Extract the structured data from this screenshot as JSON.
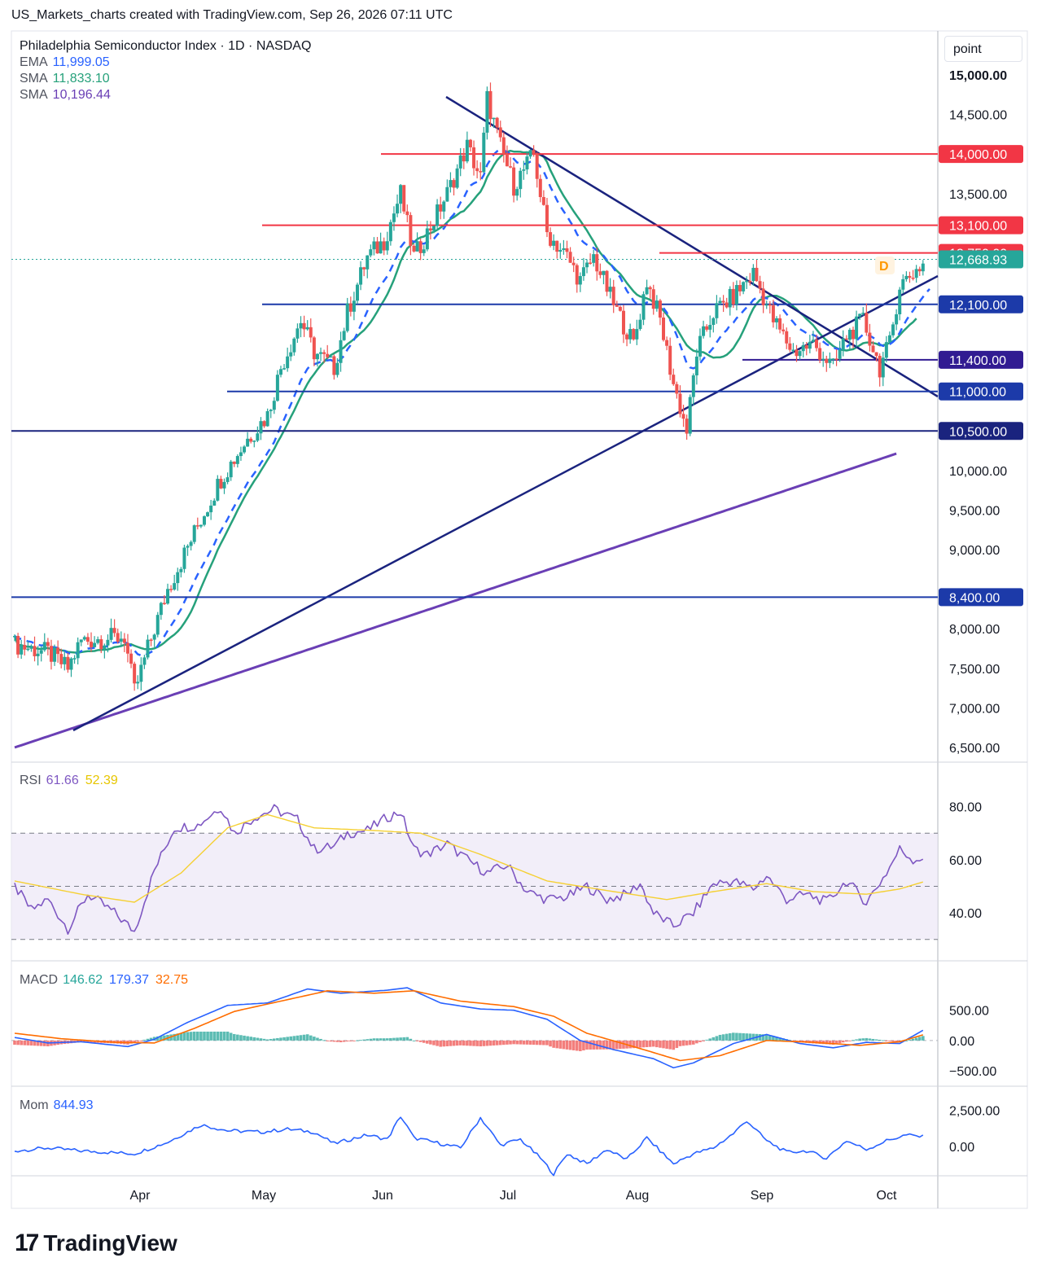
{
  "header": "US_Markets_charts created with TradingView.com, Sep 26, 2026 07:11 UTC",
  "unit_label": "point",
  "brand": "TradingView",
  "legend": {
    "title": "Philadelphia Semiconductor Index · 1D · NASDAQ",
    "ema_label": "EMA",
    "ema_value": "11,999.05",
    "sma1_label": "SMA",
    "sma1_value": "11,833.10",
    "sma2_label": "SMA",
    "sma2_value": "10,196.44"
  },
  "rsi_legend": {
    "label": "RSI",
    "v1": "61.66",
    "v2": "52.39"
  },
  "macd_legend": {
    "label": "MACD",
    "v1": "146.62",
    "v2": "179.37",
    "v3": "32.75"
  },
  "mom_legend": {
    "label": "Mom",
    "v1": "844.93"
  },
  "colors": {
    "up": "#26a69a",
    "down": "#ef5350",
    "ema": "#2962ff",
    "sma50": "#26a17b",
    "sma200": "#6a3fb5",
    "trend": "#1a237e",
    "rsi": "#7e57c2",
    "rsi_signal": "#f5d033",
    "macd": "#2962ff",
    "signal": "#ff6d00",
    "mom": "#2962ff"
  },
  "chart_data": {
    "type": "candlestick",
    "ylim": [
      6500,
      15000
    ],
    "price_ticks": [
      "15,000.00",
      "14,500.00",
      "13,500.00",
      "10,000.00",
      "9,500.00",
      "9,000.00",
      "8,000.00",
      "7,500.00",
      "7,000.00",
      "6,500.00"
    ],
    "x_labels": [
      "Apr",
      "May",
      "Jun",
      "Jul",
      "Aug",
      "Sep",
      "Oct"
    ],
    "last_price": "12,668.93",
    "marker": "D",
    "levels": [
      {
        "label": "14,000.00",
        "value": 14000,
        "color": "#f23645"
      },
      {
        "label": "13,100.00",
        "value": 13100,
        "color": "#f23645"
      },
      {
        "label": "12,750.00",
        "value": 12750,
        "color": "#f23645"
      },
      {
        "label": "12,100.00",
        "value": 12100,
        "color": "#1c3aa9"
      },
      {
        "label": "11,400.00",
        "value": 11400,
        "color": "#311b92"
      },
      {
        "label": "11,000.00",
        "value": 11000,
        "color": "#1c3aa9"
      },
      {
        "label": "10,500.00",
        "value": 10500,
        "color": "#1a237e"
      },
      {
        "label": "8,400.00",
        "value": 8400,
        "color": "#1c3aa9"
      }
    ],
    "close_keypoints": [
      [
        0,
        7800
      ],
      [
        10,
        7700
      ],
      [
        16,
        7500
      ],
      [
        20,
        7850
      ],
      [
        33,
        7900
      ],
      [
        36,
        7200
      ],
      [
        40,
        7750
      ],
      [
        46,
        8500
      ],
      [
        55,
        9300
      ],
      [
        62,
        9900
      ],
      [
        70,
        10400
      ],
      [
        76,
        10700
      ],
      [
        80,
        11300
      ],
      [
        86,
        11900
      ],
      [
        90,
        11500
      ],
      [
        96,
        11300
      ],
      [
        100,
        12000
      ],
      [
        106,
        12700
      ],
      [
        111,
        12900
      ],
      [
        116,
        13500
      ],
      [
        120,
        12700
      ],
      [
        124,
        13000
      ],
      [
        130,
        13500
      ],
      [
        136,
        14100
      ],
      [
        140,
        13700
      ],
      [
        142,
        14700
      ],
      [
        146,
        14100
      ],
      [
        150,
        13600
      ],
      [
        156,
        14000
      ],
      [
        160,
        13000
      ],
      [
        166,
        12700
      ],
      [
        170,
        12400
      ],
      [
        174,
        12700
      ],
      [
        180,
        12100
      ],
      [
        186,
        11600
      ],
      [
        190,
        12400
      ],
      [
        194,
        11900
      ],
      [
        198,
        11100
      ],
      [
        202,
        10500
      ],
      [
        205,
        11500
      ],
      [
        210,
        12000
      ],
      [
        216,
        12200
      ],
      [
        222,
        12500
      ],
      [
        228,
        11900
      ],
      [
        234,
        11500
      ],
      [
        240,
        11600
      ],
      [
        246,
        11300
      ],
      [
        250,
        11700
      ],
      [
        255,
        11900
      ],
      [
        260,
        11300
      ],
      [
        263,
        11600
      ],
      [
        266,
        12350
      ],
      [
        270,
        12500
      ],
      [
        274,
        12650
      ]
    ],
    "rsi": {
      "ylim": [
        25,
        90
      ],
      "ticks": [
        "80.00",
        "60.00",
        "40.00"
      ],
      "upper": 70,
      "mid": 50,
      "lower": 30,
      "keypoints": [
        [
          0,
          50
        ],
        [
          5,
          41
        ],
        [
          10,
          45
        ],
        [
          16,
          34
        ],
        [
          22,
          47
        ],
        [
          30,
          40
        ],
        [
          36,
          33
        ],
        [
          42,
          56
        ],
        [
          48,
          72
        ],
        [
          55,
          73
        ],
        [
          62,
          80
        ],
        [
          66,
          70
        ],
        [
          72,
          76
        ],
        [
          78,
          79
        ],
        [
          85,
          75
        ],
        [
          90,
          64
        ],
        [
          96,
          65
        ],
        [
          100,
          70
        ],
        [
          106,
          71
        ],
        [
          112,
          76
        ],
        [
          116,
          78
        ],
        [
          120,
          64
        ],
        [
          124,
          62
        ],
        [
          130,
          66
        ],
        [
          136,
          60
        ],
        [
          142,
          55
        ],
        [
          148,
          58
        ],
        [
          154,
          48
        ],
        [
          160,
          45
        ],
        [
          166,
          46
        ],
        [
          172,
          50
        ],
        [
          178,
          45
        ],
        [
          184,
          47
        ],
        [
          188,
          51
        ],
        [
          192,
          40
        ],
        [
          198,
          35
        ],
        [
          204,
          40
        ],
        [
          210,
          51
        ],
        [
          216,
          52
        ],
        [
          222,
          49
        ],
        [
          226,
          54
        ],
        [
          232,
          45
        ],
        [
          238,
          47
        ],
        [
          244,
          44
        ],
        [
          250,
          52
        ],
        [
          256,
          44
        ],
        [
          262,
          55
        ],
        [
          266,
          64
        ],
        [
          270,
          60
        ],
        [
          274,
          61
        ]
      ],
      "signal_keypoints": [
        [
          0,
          52
        ],
        [
          20,
          47
        ],
        [
          36,
          44
        ],
        [
          50,
          55
        ],
        [
          64,
          72
        ],
        [
          76,
          77
        ],
        [
          90,
          72
        ],
        [
          108,
          71
        ],
        [
          122,
          70
        ],
        [
          140,
          62
        ],
        [
          160,
          52
        ],
        [
          180,
          48
        ],
        [
          196,
          45
        ],
        [
          210,
          48
        ],
        [
          226,
          51
        ],
        [
          240,
          48
        ],
        [
          256,
          47
        ],
        [
          266,
          49
        ],
        [
          274,
          52
        ]
      ]
    },
    "macd": {
      "ylim": [
        -700,
        1100
      ],
      "ticks": [
        "500.00",
        "0.00",
        "−500.00"
      ],
      "macd_keypoints": [
        [
          0,
          50
        ],
        [
          10,
          -40
        ],
        [
          20,
          -20
        ],
        [
          34,
          -100
        ],
        [
          42,
          20
        ],
        [
          52,
          300
        ],
        [
          64,
          580
        ],
        [
          76,
          620
        ],
        [
          88,
          850
        ],
        [
          98,
          780
        ],
        [
          112,
          830
        ],
        [
          118,
          870
        ],
        [
          128,
          620
        ],
        [
          140,
          520
        ],
        [
          150,
          500
        ],
        [
          160,
          350
        ],
        [
          170,
          0
        ],
        [
          180,
          -150
        ],
        [
          192,
          -300
        ],
        [
          198,
          -450
        ],
        [
          204,
          -370
        ],
        [
          216,
          -50
        ],
        [
          226,
          100
        ],
        [
          236,
          -50
        ],
        [
          246,
          -120
        ],
        [
          256,
          -30
        ],
        [
          266,
          -50
        ],
        [
          274,
          200
        ]
      ],
      "signal_keypoints": [
        [
          0,
          120
        ],
        [
          14,
          30
        ],
        [
          30,
          -30
        ],
        [
          42,
          -40
        ],
        [
          54,
          200
        ],
        [
          66,
          480
        ],
        [
          80,
          650
        ],
        [
          94,
          820
        ],
        [
          108,
          780
        ],
        [
          120,
          820
        ],
        [
          134,
          650
        ],
        [
          150,
          560
        ],
        [
          162,
          400
        ],
        [
          172,
          120
        ],
        [
          186,
          -100
        ],
        [
          200,
          -330
        ],
        [
          212,
          -250
        ],
        [
          226,
          0
        ],
        [
          240,
          -30
        ],
        [
          254,
          -80
        ],
        [
          266,
          -20
        ],
        [
          274,
          110
        ]
      ]
    },
    "mom": {
      "ylim": [
        -1800,
        3500
      ],
      "ticks": [
        "2,500.00",
        "0.00"
      ],
      "keypoints": [
        [
          0,
          -300
        ],
        [
          10,
          -100
        ],
        [
          20,
          -300
        ],
        [
          36,
          -500
        ],
        [
          46,
          300
        ],
        [
          56,
          1500
        ],
        [
          64,
          1100
        ],
        [
          74,
          1000
        ],
        [
          82,
          1200
        ],
        [
          90,
          1000
        ],
        [
          96,
          200
        ],
        [
          106,
          800
        ],
        [
          112,
          500
        ],
        [
          116,
          2100
        ],
        [
          120,
          600
        ],
        [
          126,
          300
        ],
        [
          134,
          -100
        ],
        [
          140,
          2000
        ],
        [
          146,
          100
        ],
        [
          152,
          500
        ],
        [
          158,
          -800
        ],
        [
          162,
          -1900
        ],
        [
          166,
          -500
        ],
        [
          172,
          -1200
        ],
        [
          178,
          -200
        ],
        [
          184,
          -900
        ],
        [
          190,
          600
        ],
        [
          198,
          -1200
        ],
        [
          204,
          -500
        ],
        [
          210,
          -100
        ],
        [
          216,
          900
        ],
        [
          220,
          1800
        ],
        [
          226,
          400
        ],
        [
          232,
          -400
        ],
        [
          238,
          -300
        ],
        [
          244,
          -800
        ],
        [
          250,
          400
        ],
        [
          256,
          -200
        ],
        [
          262,
          400
        ],
        [
          268,
          800
        ],
        [
          274,
          650
        ]
      ]
    }
  }
}
